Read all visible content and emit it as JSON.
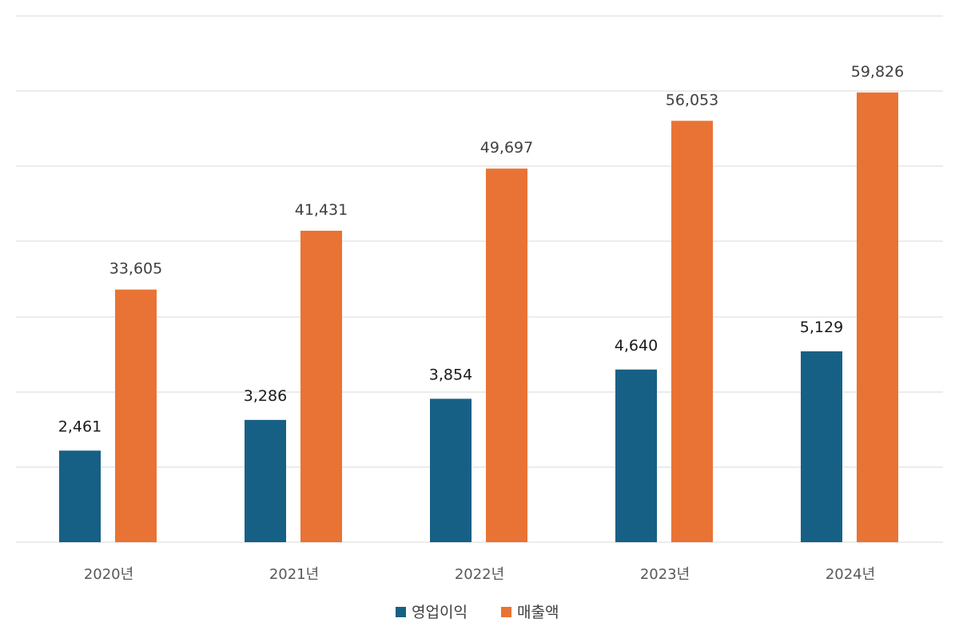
{
  "chart_data": {
    "type": "bar",
    "categories": [
      "2020년",
      "2021년",
      "2022년",
      "2023년",
      "2024년"
    ],
    "series": [
      {
        "name": "영업이익",
        "color": "#176085",
        "values": [
          2461,
          3286,
          3854,
          4640,
          5129
        ],
        "labels": [
          "2,461",
          "3,286",
          "3,854",
          "4,640",
          "5,129"
        ]
      },
      {
        "name": "매출액",
        "color": "#e97334",
        "values": [
          33605,
          41431,
          49697,
          56053,
          59826
        ],
        "labels": [
          "33,605",
          "41,431",
          "49,697",
          "56,053",
          "59,826"
        ]
      }
    ],
    "grid": true,
    "legend_position": "bottom",
    "data_labels": true,
    "note": "Two series appear drawn on different scales (secondary axis for 영업이익); no axis tick labels shown."
  }
}
